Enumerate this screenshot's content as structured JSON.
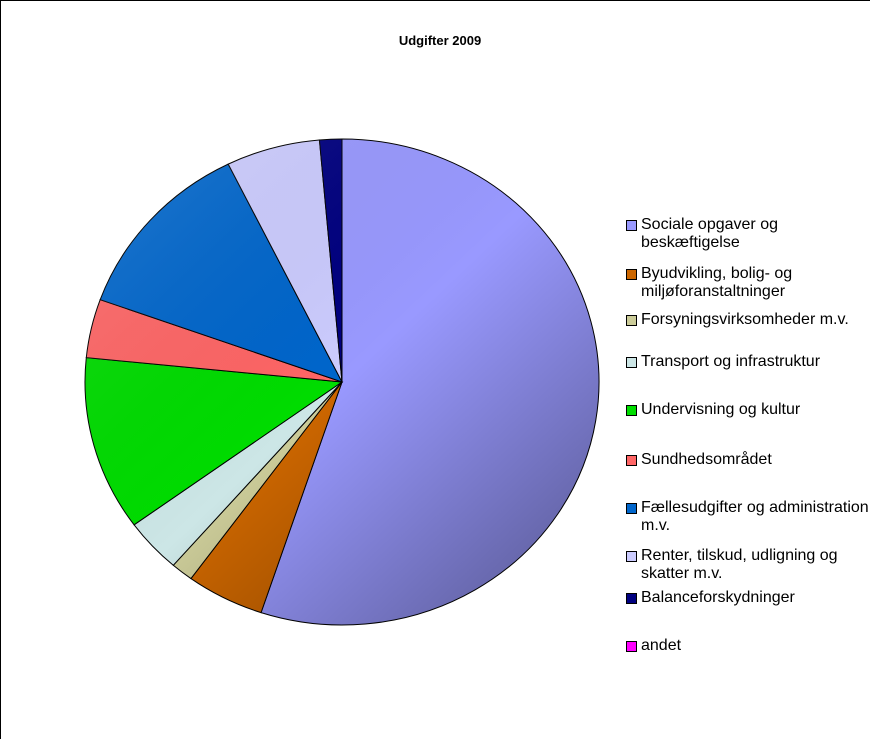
{
  "chart_data": {
    "type": "pie",
    "title": "Udgifter 2009",
    "categories": [
      "Sociale opgaver og beskæftigelse",
      "Byudvikling, bolig- og miljøforanstaltninger",
      "Forsyningsvirksomheder m.v.",
      "Transport og infrastruktur",
      "Undervisning og kultur",
      "Sundhedsområdet",
      "Fællesudgifter og administration m.v.",
      "Renter, tilskud, udligning og skatter m.v.",
      "Balanceforskydninger",
      "andet"
    ],
    "values": [
      55.1,
      4.9,
      1.4,
      3.6,
      11.6,
      3.9,
      12.2,
      5.9,
      1.4,
      0
    ],
    "colors": [
      "#9999ff",
      "#cc6600",
      "#cccc99",
      "#cce6e6",
      "#00dd00",
      "#ff6666",
      "#0066cc",
      "#ccccff",
      "#000080",
      "#ff00ff"
    ],
    "legend": "right"
  }
}
